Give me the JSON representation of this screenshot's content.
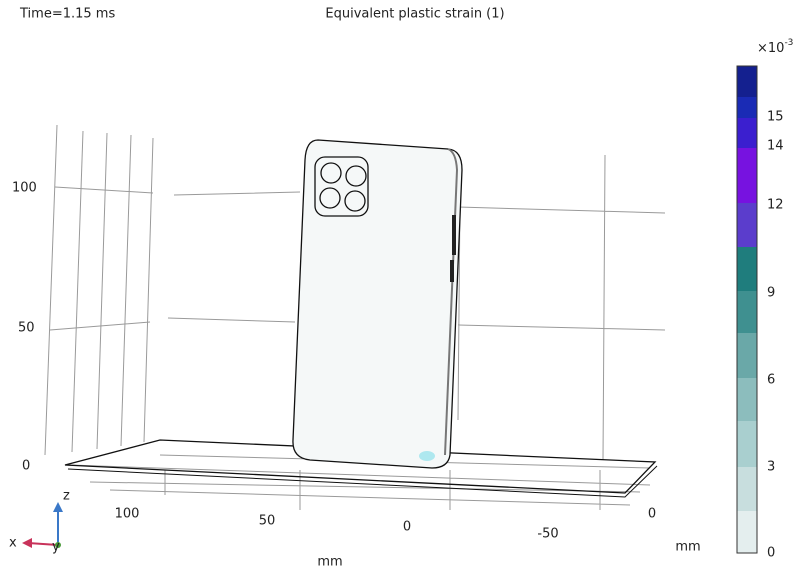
{
  "header": {
    "time": "Time=1.15 ms",
    "title": "Equivalent plastic strain (1)"
  },
  "axes": {
    "z_ticks": [
      "100",
      "50",
      "0"
    ],
    "x_ticks": [
      "100",
      "50",
      "0",
      "-50",
      "0"
    ],
    "x_unit": "mm",
    "y_unit": "mm",
    "triad": {
      "x": "x",
      "y": "y",
      "z": "z"
    }
  },
  "colorbar": {
    "multiplier": "×10",
    "exponent": "-3",
    "ticks": [
      "15",
      "14",
      "12",
      "9",
      "6",
      "3",
      "0"
    ]
  }
}
